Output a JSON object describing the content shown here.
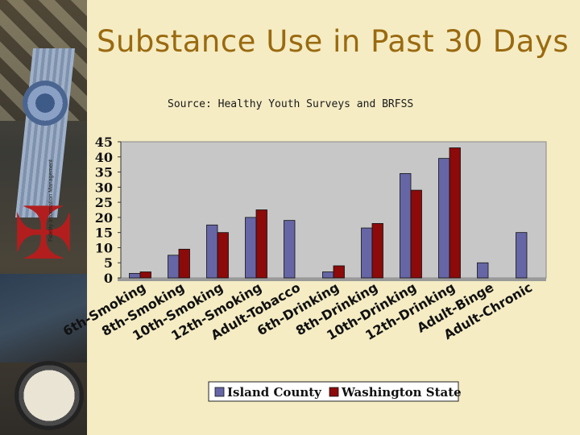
{
  "title": "Substance Use in Past 30 Days",
  "source": "Source:  Healthy Youth Surveys and BRFSS",
  "credit": "Fidelity Information Management",
  "colors": {
    "island": "#6666a6",
    "washington": "#8c0a0a",
    "plot_bg": "#c7c7c7"
  },
  "chart_data": {
    "type": "bar",
    "categories": [
      "6th-Smoking",
      "8th-Smoking",
      "10th-Smoking",
      "12th-Smoking",
      "Adult-Tobacco",
      "6th-Drinking",
      "8th-Drinking",
      "10th-Drinking",
      "12th-Drinking",
      "Adult-Binge",
      "Adult-Chronic"
    ],
    "series": [
      {
        "name": "Island County",
        "values": [
          1.5,
          7.5,
          17.5,
          20,
          19,
          2,
          16.5,
          34.5,
          39.5,
          5,
          15
        ]
      },
      {
        "name": "Washington State",
        "values": [
          2,
          9.5,
          15,
          22.5,
          null,
          4,
          18,
          29,
          43,
          null,
          null
        ]
      }
    ],
    "ylim": [
      0,
      45
    ],
    "yticks": [
      0,
      5,
      10,
      15,
      20,
      25,
      30,
      35,
      40,
      45
    ],
    "grid": false,
    "legend": "bottom"
  }
}
